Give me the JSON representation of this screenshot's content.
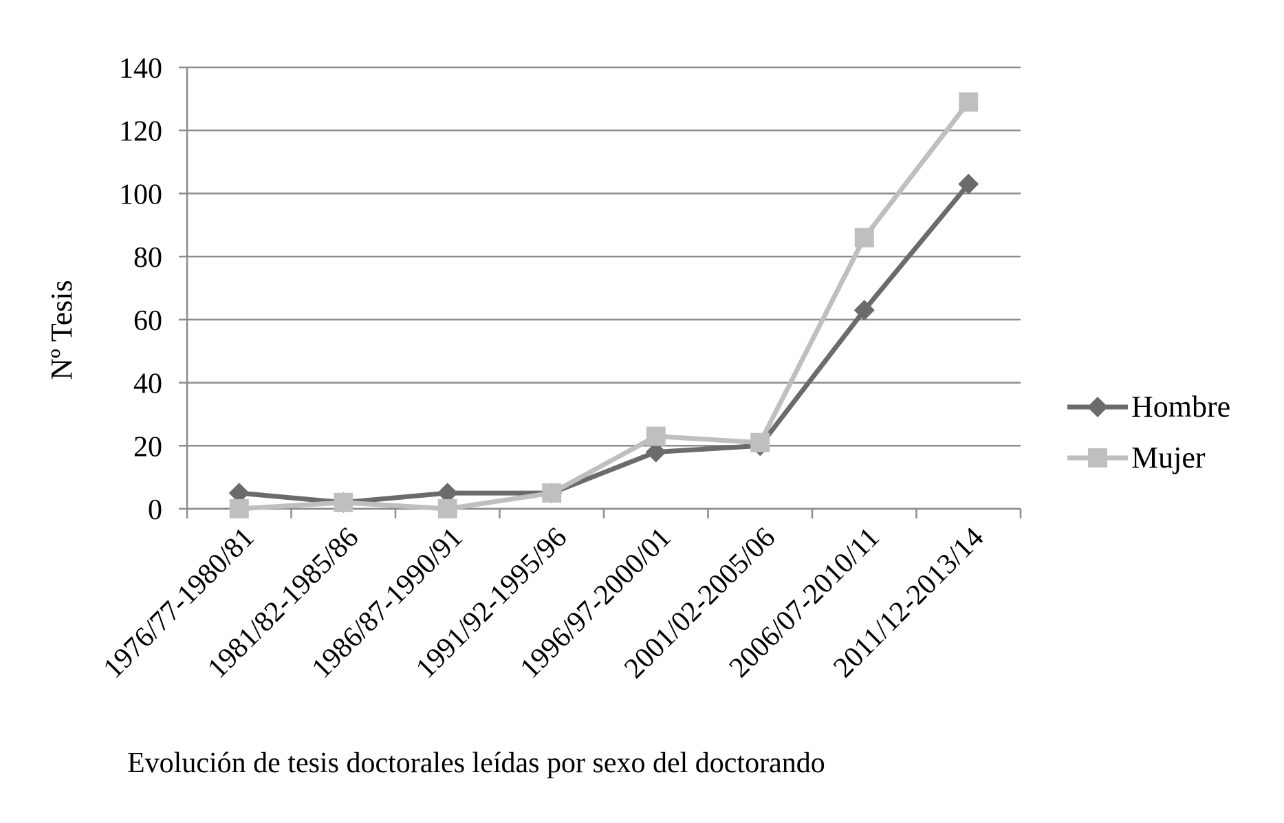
{
  "chart_data": {
    "type": "line",
    "categories": [
      "1976/77-1980/81",
      "1981/82-1985/86",
      "1986/87-1990/91",
      "1991/92-1995/96",
      "1996/97-2000/01",
      "2001/02-2005/06",
      "2006/07-2010/11",
      "2011/12-2013/14"
    ],
    "series": [
      {
        "name": "Hombre",
        "values": [
          5,
          2,
          5,
          5,
          18,
          20,
          63,
          103
        ],
        "color": "#6b6b6b",
        "marker": "diamond"
      },
      {
        "name": "Mujer",
        "values": [
          0,
          2,
          0,
          5,
          23,
          21,
          86,
          129
        ],
        "color": "#bfbfbf",
        "marker": "square"
      }
    ],
    "title": "",
    "xlabel": "",
    "ylabel": "Nº Tesis",
    "ylim": [
      0,
      140
    ],
    "yticks": [
      0,
      20,
      40,
      60,
      80,
      100,
      120,
      140
    ],
    "grid": true,
    "legend_position": "right",
    "caption": "Evolución de tesis doctorales leídas por sexo del doctorando"
  }
}
